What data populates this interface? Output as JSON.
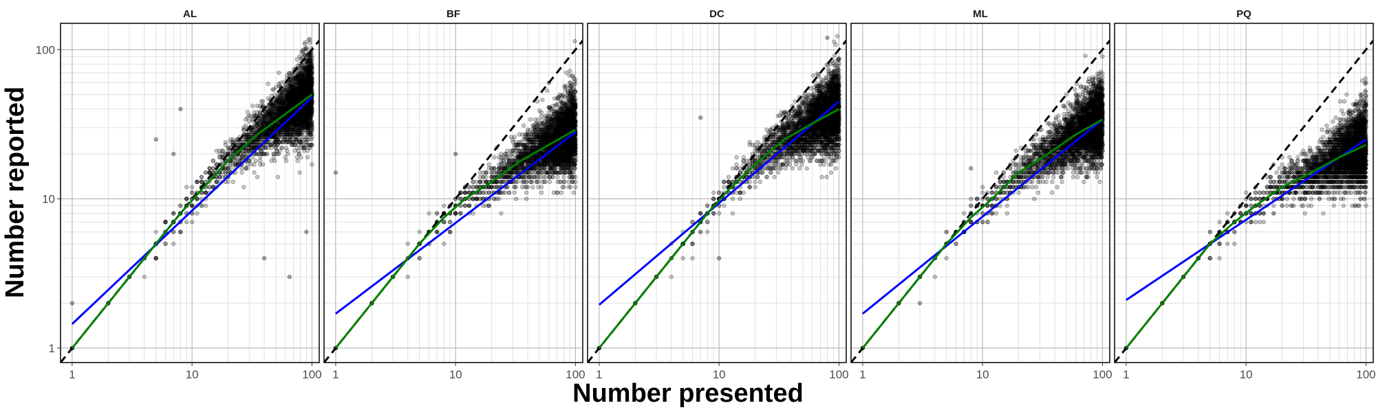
{
  "chart_data": {
    "type": "scatter",
    "xlabel": "Number presented",
    "ylabel": "Number reported",
    "scale": "log10",
    "xlim": [
      0.8,
      115
    ],
    "ylim": [
      0.8,
      150
    ],
    "x_ticks": [
      "1",
      "10",
      "100"
    ],
    "y_ticks": [
      "1",
      "10",
      "100"
    ],
    "grid": true,
    "legend": "none",
    "colors": {
      "points": "#000000",
      "power_fit": "#0000ff",
      "segmented_fit": "#008000",
      "identity": "#000000",
      "grid_major": "#b3b3b3",
      "grid_minor": "#d9d9d9"
    },
    "reference_line": {
      "style": "dashed",
      "slope": 1,
      "intercept": 0
    },
    "panels": [
      {
        "name": "AL",
        "power_fit": {
          "from": [
            1,
            1.45
          ],
          "to": [
            100,
            48
          ]
        },
        "segmented_fit": [
          [
            1,
            1
          ],
          [
            2,
            2
          ],
          [
            3,
            3
          ],
          [
            5,
            5
          ],
          [
            8,
            8
          ],
          [
            12,
            11.5
          ],
          [
            20,
            18
          ],
          [
            35,
            27
          ],
          [
            60,
            37
          ],
          [
            100,
            50
          ]
        ],
        "points_summary": [
          [
            1,
            1
          ],
          [
            1,
            2
          ],
          [
            2,
            2
          ],
          [
            3,
            3
          ],
          [
            4,
            4
          ],
          [
            5,
            5
          ],
          [
            5,
            4
          ],
          [
            6,
            6
          ],
          [
            7,
            7
          ],
          [
            8,
            8
          ],
          [
            8,
            7
          ],
          [
            9,
            9
          ],
          [
            10,
            10
          ],
          [
            12,
            12
          ],
          [
            15,
            14
          ],
          [
            18,
            16
          ],
          [
            20,
            20
          ],
          [
            25,
            22
          ],
          [
            30,
            26
          ],
          [
            40,
            30
          ],
          [
            50,
            35
          ],
          [
            60,
            40
          ],
          [
            70,
            45
          ],
          [
            80,
            50
          ],
          [
            90,
            55
          ],
          [
            100,
            60
          ],
          [
            5,
            25
          ],
          [
            8,
            40
          ],
          [
            7,
            20
          ],
          [
            40,
            4
          ],
          [
            65,
            3
          ],
          [
            90,
            6
          ]
        ]
      },
      {
        "name": "BF",
        "power_fit": {
          "from": [
            1,
            1.7
          ],
          "to": [
            100,
            28
          ]
        },
        "segmented_fit": [
          [
            1,
            1
          ],
          [
            2,
            2
          ],
          [
            3,
            3
          ],
          [
            5,
            5
          ],
          [
            8,
            7.5
          ],
          [
            12,
            10
          ],
          [
            20,
            13
          ],
          [
            35,
            18
          ],
          [
            60,
            23
          ],
          [
            100,
            29
          ]
        ],
        "points_summary": [
          [
            1,
            1
          ],
          [
            2,
            2
          ],
          [
            3,
            3
          ],
          [
            4,
            4
          ],
          [
            5,
            5
          ],
          [
            6,
            6
          ],
          [
            7,
            7
          ],
          [
            8,
            8
          ],
          [
            10,
            9
          ],
          [
            12,
            10
          ],
          [
            15,
            12
          ],
          [
            20,
            14
          ],
          [
            25,
            16
          ],
          [
            30,
            18
          ],
          [
            40,
            20
          ],
          [
            50,
            22
          ],
          [
            60,
            25
          ],
          [
            70,
            26
          ],
          [
            80,
            28
          ],
          [
            90,
            30
          ],
          [
            100,
            30
          ],
          [
            1,
            15
          ],
          [
            10,
            20
          ],
          [
            60,
            60
          ]
        ]
      },
      {
        "name": "DC",
        "power_fit": {
          "from": [
            1,
            1.95
          ],
          "to": [
            100,
            45
          ]
        },
        "segmented_fit": [
          [
            1,
            1
          ],
          [
            2,
            2
          ],
          [
            3,
            3
          ],
          [
            5,
            5
          ],
          [
            8,
            8
          ],
          [
            12,
            11.5
          ],
          [
            20,
            17
          ],
          [
            35,
            25
          ],
          [
            60,
            32
          ],
          [
            100,
            40
          ]
        ],
        "points_summary": [
          [
            1,
            1
          ],
          [
            2,
            2
          ],
          [
            3,
            3
          ],
          [
            4,
            4
          ],
          [
            5,
            5
          ],
          [
            6,
            6
          ],
          [
            7,
            7
          ],
          [
            8,
            8
          ],
          [
            10,
            10
          ],
          [
            12,
            12
          ],
          [
            15,
            14
          ],
          [
            20,
            16
          ],
          [
            25,
            20
          ],
          [
            30,
            22
          ],
          [
            40,
            25
          ],
          [
            50,
            28
          ],
          [
            60,
            30
          ],
          [
            70,
            35
          ],
          [
            80,
            40
          ],
          [
            90,
            45
          ],
          [
            100,
            50
          ],
          [
            7,
            35
          ],
          [
            10,
            4
          ],
          [
            80,
            120
          ]
        ]
      },
      {
        "name": "ML",
        "power_fit": {
          "from": [
            1,
            1.7
          ],
          "to": [
            100,
            34
          ]
        },
        "segmented_fit": [
          [
            1,
            1
          ],
          [
            2,
            2
          ],
          [
            3,
            3
          ],
          [
            5,
            5
          ],
          [
            8,
            7.5
          ],
          [
            12,
            10
          ],
          [
            20,
            15
          ],
          [
            35,
            20
          ],
          [
            60,
            27
          ],
          [
            100,
            34
          ]
        ],
        "points_summary": [
          [
            1,
            1
          ],
          [
            2,
            2
          ],
          [
            3,
            2
          ],
          [
            3,
            3
          ],
          [
            4,
            4
          ],
          [
            5,
            5
          ],
          [
            6,
            6
          ],
          [
            7,
            7
          ],
          [
            8,
            8
          ],
          [
            10,
            9
          ],
          [
            12,
            10
          ],
          [
            15,
            12
          ],
          [
            20,
            14
          ],
          [
            25,
            16
          ],
          [
            30,
            18
          ],
          [
            40,
            20
          ],
          [
            50,
            22
          ],
          [
            60,
            25
          ],
          [
            70,
            27
          ],
          [
            80,
            30
          ],
          [
            90,
            32
          ],
          [
            100,
            35
          ],
          [
            8,
            16
          ],
          [
            100,
            50
          ]
        ]
      },
      {
        "name": "PQ",
        "power_fit": {
          "from": [
            1,
            2.1
          ],
          "to": [
            100,
            25
          ]
        },
        "segmented_fit": [
          [
            1,
            1
          ],
          [
            2,
            2
          ],
          [
            3,
            3
          ],
          [
            5,
            5
          ],
          [
            8,
            7
          ],
          [
            12,
            9
          ],
          [
            20,
            12
          ],
          [
            35,
            15
          ],
          [
            60,
            19
          ],
          [
            100,
            23
          ]
        ],
        "points_summary": [
          [
            1,
            1
          ],
          [
            2,
            2
          ],
          [
            3,
            3
          ],
          [
            4,
            4
          ],
          [
            5,
            5
          ],
          [
            6,
            6
          ],
          [
            7,
            7
          ],
          [
            8,
            7
          ],
          [
            10,
            8
          ],
          [
            12,
            9
          ],
          [
            15,
            10
          ],
          [
            20,
            12
          ],
          [
            25,
            13
          ],
          [
            30,
            14
          ],
          [
            40,
            15
          ],
          [
            50,
            16
          ],
          [
            60,
            18
          ],
          [
            70,
            19
          ],
          [
            80,
            20
          ],
          [
            90,
            22
          ],
          [
            100,
            24
          ],
          [
            70,
            30
          ],
          [
            90,
            45
          ],
          [
            100,
            60
          ]
        ]
      }
    ]
  }
}
